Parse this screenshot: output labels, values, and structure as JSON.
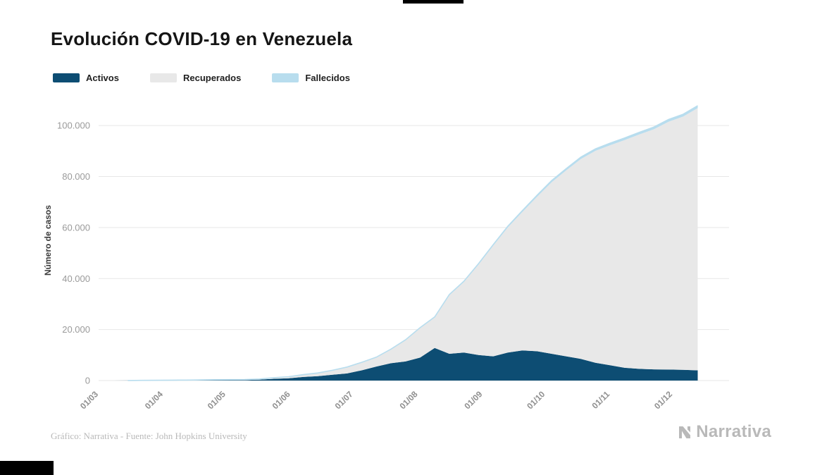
{
  "title": "Evolución COVID-19 en Venezuela",
  "footer": {
    "credit": "Gráfico: Narrativa - Fuente: John Hopkins University",
    "brand": "Narrativa"
  },
  "chart_data": {
    "type": "area",
    "stacked": true,
    "title": "Evolución COVID-19 en Venezuela",
    "xlabel": "",
    "ylabel": "Número de casos",
    "ylim": [
      0,
      110000
    ],
    "grid": true,
    "legend_position": "top-left",
    "x_max_days": 302,
    "x_days": [
      0,
      7,
      14,
      21,
      28,
      35,
      42,
      49,
      56,
      63,
      70,
      77,
      84,
      91,
      98,
      105,
      112,
      119,
      126,
      133,
      140,
      147,
      154,
      161,
      168,
      175,
      182,
      189,
      196,
      203,
      210,
      217,
      224,
      231,
      238,
      245,
      252,
      259,
      266,
      273,
      280,
      287
    ],
    "x_dates": [
      "01/03",
      "08/03",
      "15/03",
      "22/03",
      "29/03",
      "05/04",
      "12/04",
      "19/04",
      "26/04",
      "03/05",
      "10/05",
      "17/05",
      "24/05",
      "31/05",
      "07/06",
      "14/06",
      "21/06",
      "28/06",
      "05/07",
      "12/07",
      "19/07",
      "26/07",
      "02/08",
      "09/08",
      "16/08",
      "23/08",
      "30/08",
      "06/09",
      "13/09",
      "20/09",
      "27/09",
      "04/10",
      "11/10",
      "18/10",
      "25/10",
      "01/11",
      "08/11",
      "15/11",
      "22/11",
      "29/11",
      "06/12",
      "13/12"
    ],
    "series": [
      {
        "name": "Activos",
        "color": "#0d4d73",
        "values": [
          0,
          0,
          17,
          70,
          80,
          80,
          85,
          130,
          180,
          190,
          210,
          340,
          700,
          900,
          1400,
          1700,
          2300,
          2800,
          4000,
          5500,
          6800,
          7500,
          9000,
          12800,
          10500,
          11000,
          10000,
          9500,
          11000,
          11800,
          11500,
          10500,
          9500,
          8500,
          7000,
          6000,
          5000,
          4600,
          4400,
          4300,
          4200,
          4000
        ]
      },
      {
        "name": "Recuperados",
        "color": "#e8e8e8",
        "values": [
          0,
          0,
          0,
          7,
          37,
          72,
          87,
          117,
          139,
          157,
          202,
          268,
          411,
          596,
          896,
          1253,
          1713,
          2450,
          3104,
          3593,
          5419,
          8342,
          11580,
          11938,
          22974,
          27633,
          35487,
          43361,
          49055,
          54309,
          60586,
          67280,
          72939,
          78398,
          83092,
          86287,
          89319,
          91902,
          94167,
          97201,
          99324,
          102851
        ]
      },
      {
        "name": "Fallecidos",
        "color": "#b8ddee",
        "values": [
          0,
          0,
          0,
          0,
          2,
          7,
          9,
          9,
          10,
          10,
          10,
          10,
          10,
          14,
          20,
          25,
          35,
          47,
          65,
          85,
          115,
          146,
          174,
          223,
          281,
          324,
          381,
          428,
          485,
          547,
          605,
          654,
          698,
          746,
          784,
          813,
          830,
          850,
          868,
          893,
          918,
          935
        ]
      }
    ],
    "y_ticks": [
      {
        "v": 0,
        "label": "0"
      },
      {
        "v": 20000,
        "label": "20.000"
      },
      {
        "v": 40000,
        "label": "40.000"
      },
      {
        "v": 60000,
        "label": "60.000"
      },
      {
        "v": 80000,
        "label": "80.000"
      },
      {
        "v": 100000,
        "label": "100.000"
      }
    ],
    "x_ticks": [
      {
        "t": 0,
        "label": "01/03"
      },
      {
        "t": 31,
        "label": "01/04"
      },
      {
        "t": 61,
        "label": "01/05"
      },
      {
        "t": 92,
        "label": "01/06"
      },
      {
        "t": 122,
        "label": "01/07"
      },
      {
        "t": 153,
        "label": "01/08"
      },
      {
        "t": 184,
        "label": "01/09"
      },
      {
        "t": 214,
        "label": "01/10"
      },
      {
        "t": 245,
        "label": "01/11"
      },
      {
        "t": 275,
        "label": "01/12"
      }
    ]
  }
}
